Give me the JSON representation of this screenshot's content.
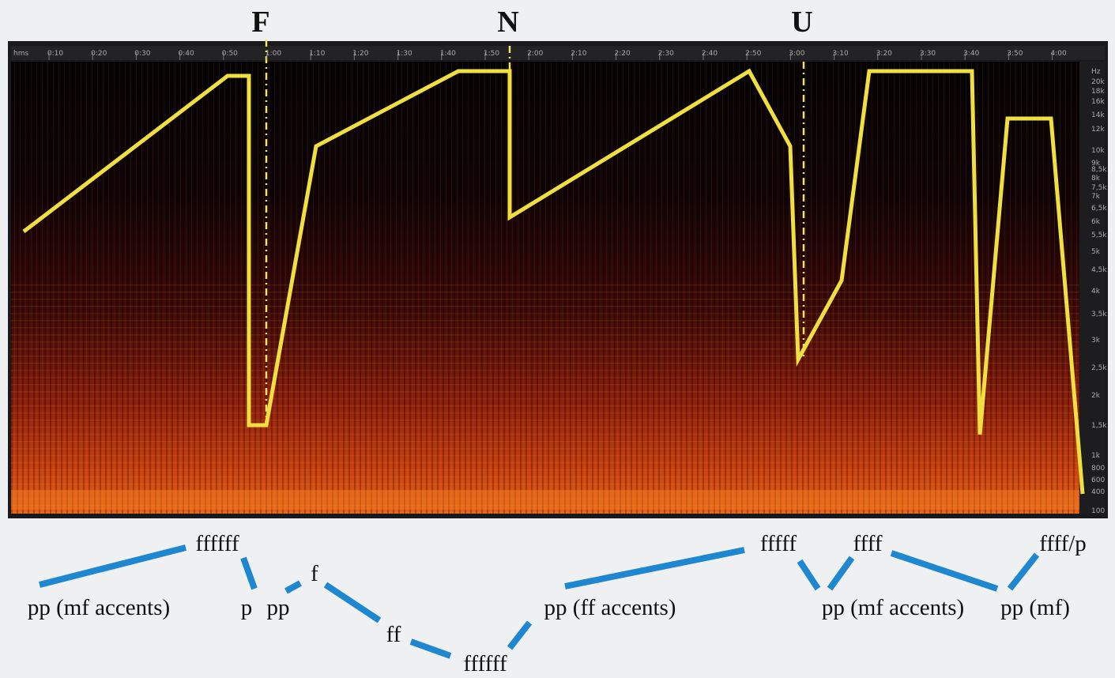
{
  "section_markers": [
    "F",
    "N",
    "U"
  ],
  "time_ruler": {
    "unit": "hms",
    "labels": [
      "0:10",
      "0:20",
      "0:30",
      "0:40",
      "0:50",
      "1:00",
      "1:10",
      "1:20",
      "1:30",
      "1:40",
      "1:50",
      "2:00",
      "2:10",
      "2:20",
      "2:30",
      "2:40",
      "2:50",
      "3:00",
      "3:10",
      "3:20",
      "3:30",
      "3:40",
      "3:50",
      "4:00"
    ]
  },
  "frequency_ruler": {
    "unit": "Hz",
    "labels": [
      "20k",
      "18k",
      "16k",
      "14k",
      "12k",
      "10k",
      "9k",
      "8,5k",
      "8k",
      "7,5k",
      "7k",
      "6,5k",
      "6k",
      "5,5k",
      "5k",
      "4,5k",
      "4k",
      "3,5k",
      "3k",
      "2,5k",
      "2k",
      "1,5k",
      "1k",
      "800",
      "600",
      "400",
      "100"
    ]
  },
  "dynamics": [
    "pp (mf accents)",
    "ffffff",
    "p",
    "pp",
    "f",
    "ff",
    "ffffff",
    "pp (ff accents)",
    "fffff",
    "ffff",
    "pp (mf accents)",
    "ffff/p",
    "pp (mf)"
  ]
}
